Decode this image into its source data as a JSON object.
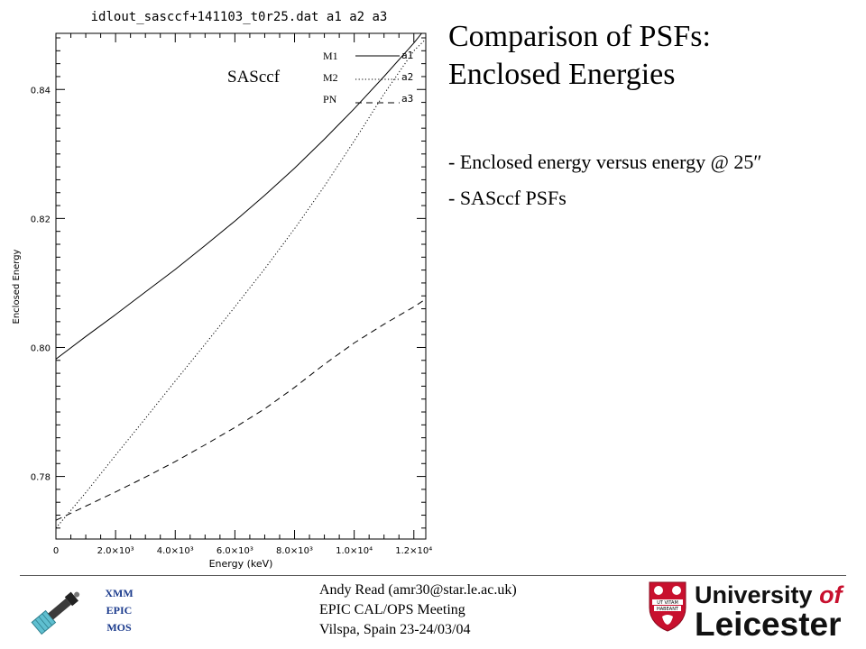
{
  "chart_data": {
    "type": "line",
    "title": "idlout_sasccf+141103_t0r25.dat a1 a2 a3",
    "xlabel": "Energy (keV)",
    "ylabel": "Enclosed Energy",
    "xlim": [
      0,
      12400
    ],
    "ylim": [
      0.7703,
      0.8487
    ],
    "x_ticks": [
      0,
      2000,
      4000,
      6000,
      8000,
      10000,
      12000
    ],
    "x_tick_labels": [
      "0",
      "2.0×10³",
      "4.0×10³",
      "6.0×10³",
      "8.0×10³",
      "1.0×10⁴",
      "1.2×10⁴"
    ],
    "y_ticks": [
      0.78,
      0.8,
      0.82,
      0.84
    ],
    "y_tick_labels": [
      "0.78",
      "0.80",
      "0.82",
      "0.84"
    ],
    "annotation": "SASccf",
    "grid": false,
    "legend_position": "top-right",
    "series": [
      {
        "name": "M1",
        "tag": "a1",
        "style": "solid",
        "x": [
          0,
          1000,
          2000,
          3000,
          4000,
          5000,
          6000,
          7000,
          8000,
          9000,
          10000,
          11000,
          12000,
          12400
        ],
        "y": [
          0.7982,
          0.8017,
          0.8051,
          0.8086,
          0.8121,
          0.8158,
          0.8196,
          0.8236,
          0.8278,
          0.8323,
          0.837,
          0.842,
          0.8472,
          0.8495
        ]
      },
      {
        "name": "M2",
        "tag": "a2",
        "style": "dotted",
        "x": [
          0,
          1000,
          2000,
          3000,
          4000,
          5000,
          6000,
          7000,
          8000,
          9000,
          10000,
          11000,
          12000,
          12400
        ],
        "y": [
          0.772,
          0.7775,
          0.7833,
          0.789,
          0.7948,
          0.8005,
          0.8063,
          0.8122,
          0.8184,
          0.825,
          0.832,
          0.8393,
          0.846,
          0.8478
        ]
      },
      {
        "name": "PN",
        "tag": "a3",
        "style": "dashed",
        "x": [
          0,
          1000,
          2000,
          3000,
          4000,
          5000,
          6000,
          7000,
          8000,
          9000,
          10000,
          11000,
          12000,
          12400
        ],
        "y": [
          0.7732,
          0.7754,
          0.7776,
          0.7799,
          0.7823,
          0.7849,
          0.7876,
          0.7905,
          0.7938,
          0.7974,
          0.8007,
          0.8036,
          0.8063,
          0.8075
        ]
      }
    ]
  },
  "slide": {
    "title_line1": "Comparison  of PSFs:",
    "title_line2": "Enclosed Energies",
    "bullets": [
      "- Enclosed energy versus energy @ 25″",
      "- SASccf PSFs"
    ]
  },
  "footer": {
    "mission_lines": [
      "XMM",
      "EPIC",
      "MOS"
    ],
    "author_lines": [
      "Andy Read (amr30@star.le.ac.uk)",
      "EPIC CAL/OPS Meeting",
      "Vilspa, Spain 23-24/03/04"
    ],
    "university_line1": "University ",
    "university_of": "of",
    "university_line2": "Leicester",
    "crest_motto_1": "UT VITAM",
    "crest_motto_2": "HABEANT"
  },
  "colors": {
    "mission": "#1a3a8c",
    "logo_red": "#c8102e",
    "satellite_panel": "#5fbfd0"
  }
}
